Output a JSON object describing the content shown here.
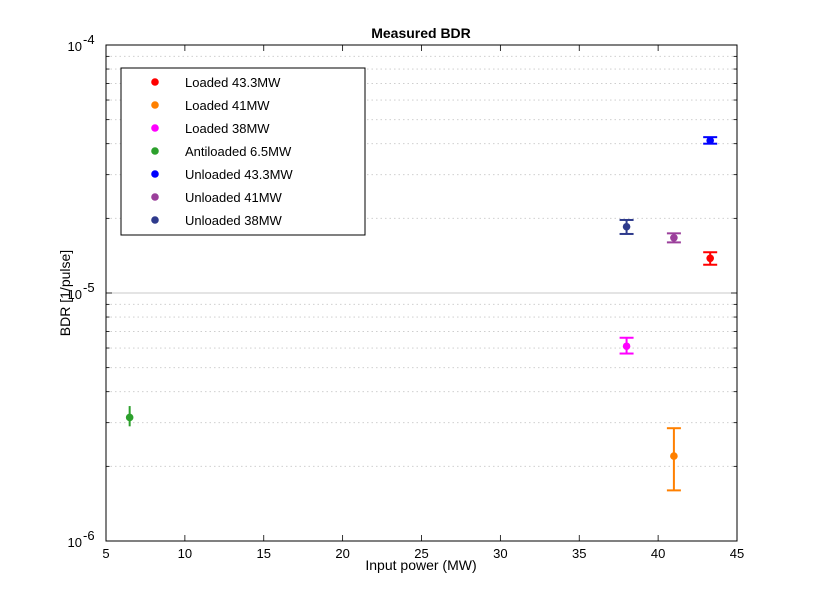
{
  "chart_data": {
    "type": "scatter",
    "title": "Measured BDR",
    "xlabel": "Input power (MW)",
    "ylabel": "BDR [1/pulse]",
    "xlim": [
      5,
      45
    ],
    "ylim": [
      1e-06,
      0.0001
    ],
    "yscale": "log",
    "grid": "minor-dotted",
    "legend_position": "top-left",
    "x_ticks": [
      "5",
      "10",
      "15",
      "20",
      "25",
      "30",
      "35",
      "40",
      "45"
    ],
    "y_ticks": [
      {
        "base": "10",
        "exp": "-6"
      },
      {
        "base": "10",
        "exp": "-5"
      },
      {
        "base": "10",
        "exp": "-4"
      }
    ],
    "series": [
      {
        "name": "Loaded 43.3MW",
        "color": "#ff0000",
        "x": 43.3,
        "y": 1.38e-05,
        "y_low": 1.3e-05,
        "y_high": 1.46e-05,
        "cap": true
      },
      {
        "name": "Loaded 41MW",
        "color": "#ff8000",
        "x": 41.0,
        "y": 2.2e-06,
        "y_low": 1.6e-06,
        "y_high": 2.85e-06,
        "cap": true
      },
      {
        "name": "Loaded 38MW",
        "color": "#ff00ff",
        "x": 38.0,
        "y": 6.1e-06,
        "y_low": 5.7e-06,
        "y_high": 6.6e-06,
        "cap": true
      },
      {
        "name": "Antiloaded 6.5MW",
        "color": "#2ca02c",
        "x": 6.5,
        "y": 3.15e-06,
        "y_low": 2.9e-06,
        "y_high": 3.5e-06,
        "cap": false
      },
      {
        "name": "Unloaded 43.3MW",
        "color": "#0000ff",
        "x": 43.3,
        "y": 4.12e-05,
        "y_low": 4e-05,
        "y_high": 4.25e-05,
        "cap": true
      },
      {
        "name": "Unloaded 41MW",
        "color": "#9b3f9b",
        "x": 41.0,
        "y": 1.67e-05,
        "y_low": 1.6e-05,
        "y_high": 1.74e-05,
        "cap": true
      },
      {
        "name": "Unloaded 38MW",
        "color": "#2e3a8c",
        "x": 38.0,
        "y": 1.85e-05,
        "y_low": 1.73e-05,
        "y_high": 1.97e-05,
        "cap": true
      }
    ]
  }
}
